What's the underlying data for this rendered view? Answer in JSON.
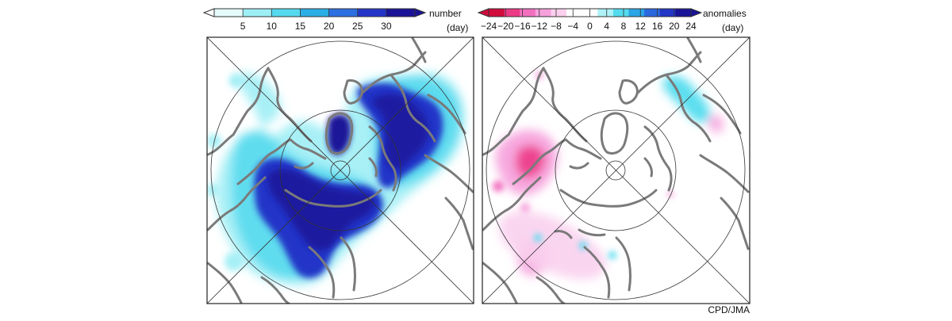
{
  "left_panel": {
    "colorbar": {
      "title": "number",
      "unit": "(day)",
      "ticks": [
        "5",
        "10",
        "15",
        "20",
        "25",
        "30"
      ],
      "colors": [
        "#e6fbfc",
        "#9eeef5",
        "#55d9ee",
        "#2aaee6",
        "#2d6fe1",
        "#2436c8",
        "#1a1398"
      ]
    }
  },
  "right_panel": {
    "colorbar": {
      "title": "anomalies",
      "unit": "(day)",
      "ticks": [
        "−24",
        "−20",
        "−16",
        "−12",
        "−8",
        "−4",
        "0",
        "4",
        "8",
        "12",
        "16",
        "20",
        "24"
      ],
      "colors": [
        "#d10b3c",
        "#ec3a86",
        "#f26fc0",
        "#f6a0dc",
        "#fad0ee",
        "#ffffff",
        "#ffffff",
        "#aef1f6",
        "#52dcee",
        "#2aa5e6",
        "#2b68de",
        "#2336c6",
        "#1a1498"
      ]
    }
  },
  "credit": "CPD/JMA"
}
